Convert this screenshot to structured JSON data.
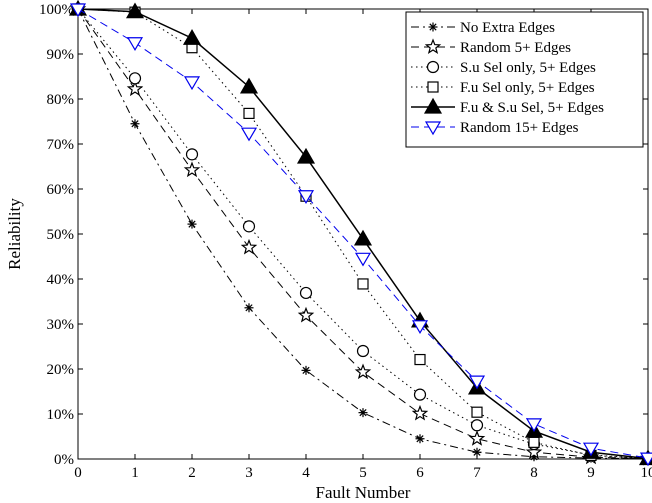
{
  "chart_data": {
    "type": "line",
    "title": "",
    "xlabel": "Fault Number",
    "ylabel": "Reliability",
    "xlim": [
      0,
      10
    ],
    "ylim": [
      0,
      100
    ],
    "x": [
      0,
      1,
      2,
      3,
      4,
      5,
      6,
      7,
      8,
      9,
      10
    ],
    "x_tick_labels": [
      "0",
      "1",
      "2",
      "3",
      "4",
      "5",
      "6",
      "7",
      "8",
      "9",
      "10"
    ],
    "y_ticks": [
      0,
      10,
      20,
      30,
      40,
      50,
      60,
      70,
      80,
      90,
      100
    ],
    "y_tick_labels": [
      "0%",
      "10%",
      "20%",
      "30%",
      "40%",
      "50%",
      "60%",
      "70%",
      "80%",
      "90%",
      "100%"
    ],
    "grid": false,
    "legend_position": "top-right",
    "series": [
      {
        "name": "No Extra Edges",
        "values": [
          100,
          74.5,
          52.2,
          33.6,
          19.7,
          10.3,
          4.5,
          1.5,
          0.5,
          0.2,
          0.1
        ],
        "color": "#000000",
        "dash": "dashdot",
        "marker": "asterisk"
      },
      {
        "name": "Random 5+ Edges",
        "values": [
          100,
          82.2,
          64.2,
          47.0,
          31.9,
          19.3,
          10.1,
          4.5,
          1.5,
          0.4,
          0.1
        ],
        "color": "#000000",
        "dash": "dashed",
        "marker": "star"
      },
      {
        "name": "S.u Sel only, 5+ Edges",
        "values": [
          100,
          84.6,
          67.7,
          51.7,
          36.9,
          24.0,
          14.3,
          7.5,
          3.3,
          0.9,
          0.1
        ],
        "color": "#000000",
        "dash": "dotted",
        "marker": "circle"
      },
      {
        "name": "F.u Sel only, 5+ Edges",
        "values": [
          100,
          99.3,
          91.4,
          76.8,
          58.4,
          38.9,
          22.1,
          10.4,
          3.7,
          0.8,
          0.1
        ],
        "color": "#000000",
        "dash": "dotted",
        "marker": "square"
      },
      {
        "name": "F.u & S.u Sel, 5+ Edges",
        "values": [
          100,
          99.4,
          93.5,
          82.7,
          67.1,
          48.9,
          30.7,
          15.8,
          6.2,
          1.5,
          0.1
        ],
        "color": "#000000",
        "dash": "solid",
        "marker": "triangle-up"
      },
      {
        "name": "Random 15+ Edges",
        "values": [
          100,
          92.5,
          83.8,
          72.4,
          58.5,
          44.6,
          29.6,
          17.3,
          7.8,
          2.4,
          0.2
        ],
        "color": "#0000ee",
        "dash": "dashed",
        "marker": "triangle-down"
      }
    ]
  }
}
